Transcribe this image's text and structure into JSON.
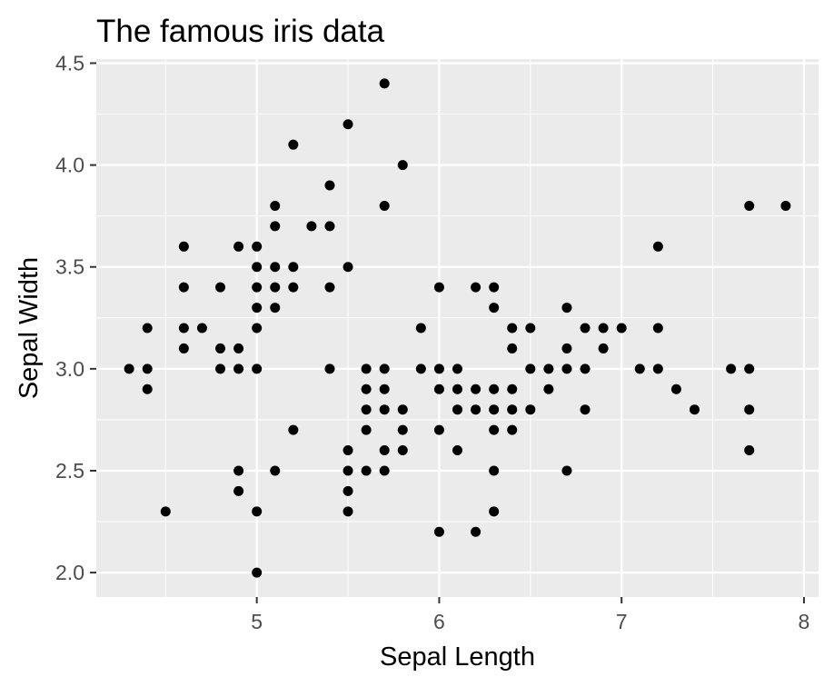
{
  "chart_data": {
    "type": "scatter",
    "title": "The famous iris data",
    "xlabel": "Sepal Length",
    "ylabel": "Sepal Width",
    "xlim": [
      4.12,
      8.08
    ],
    "ylim": [
      1.88,
      4.52
    ],
    "x_ticks": [
      5,
      6,
      7,
      8
    ],
    "x_tick_labels": [
      "5",
      "6",
      "7",
      "8"
    ],
    "y_ticks": [
      2.0,
      2.5,
      3.0,
      3.5,
      4.0,
      4.5
    ],
    "y_tick_labels": [
      "2.0",
      "2.5",
      "3.0",
      "3.5",
      "4.0",
      "4.5"
    ],
    "x_minor_ticks": [
      4.5,
      5.5,
      6.5,
      7.5
    ],
    "y_minor_ticks": [
      2.25,
      2.75,
      3.25,
      3.75,
      4.25
    ],
    "grid": true,
    "legend": "none",
    "colors": {
      "panel": "#ebebeb",
      "grid": "#ffffff",
      "point": "#000000",
      "tick": "#333333"
    },
    "points": [
      [
        4.3,
        3.0
      ],
      [
        4.4,
        3.2
      ],
      [
        4.4,
        3.0
      ],
      [
        4.4,
        2.9
      ],
      [
        4.5,
        2.3
      ],
      [
        4.6,
        3.6
      ],
      [
        4.6,
        3.4
      ],
      [
        4.6,
        3.2
      ],
      [
        4.6,
        3.1
      ],
      [
        4.7,
        3.2
      ],
      [
        4.8,
        3.4
      ],
      [
        4.8,
        3.1
      ],
      [
        4.8,
        3.0
      ],
      [
        4.9,
        3.6
      ],
      [
        4.9,
        3.1
      ],
      [
        4.9,
        3.0
      ],
      [
        4.9,
        2.5
      ],
      [
        4.9,
        2.4
      ],
      [
        5.0,
        3.6
      ],
      [
        5.0,
        3.5
      ],
      [
        5.0,
        3.4
      ],
      [
        5.0,
        3.3
      ],
      [
        5.0,
        3.2
      ],
      [
        5.0,
        3.0
      ],
      [
        5.0,
        2.3
      ],
      [
        5.0,
        2.0
      ],
      [
        5.1,
        3.8
      ],
      [
        5.1,
        3.7
      ],
      [
        5.1,
        3.5
      ],
      [
        5.1,
        3.4
      ],
      [
        5.1,
        3.3
      ],
      [
        5.1,
        2.5
      ],
      [
        5.2,
        4.1
      ],
      [
        5.2,
        3.5
      ],
      [
        5.2,
        3.4
      ],
      [
        5.2,
        2.7
      ],
      [
        5.3,
        3.7
      ],
      [
        5.4,
        3.9
      ],
      [
        5.4,
        3.7
      ],
      [
        5.4,
        3.4
      ],
      [
        5.4,
        3.0
      ],
      [
        5.5,
        4.2
      ],
      [
        5.5,
        3.5
      ],
      [
        5.5,
        2.6
      ],
      [
        5.5,
        2.5
      ],
      [
        5.5,
        2.4
      ],
      [
        5.5,
        2.3
      ],
      [
        5.6,
        3.0
      ],
      [
        5.6,
        2.9
      ],
      [
        5.6,
        2.8
      ],
      [
        5.6,
        2.7
      ],
      [
        5.6,
        2.5
      ],
      [
        5.7,
        4.4
      ],
      [
        5.7,
        3.8
      ],
      [
        5.7,
        3.0
      ],
      [
        5.7,
        2.9
      ],
      [
        5.7,
        2.8
      ],
      [
        5.7,
        2.6
      ],
      [
        5.7,
        2.5
      ],
      [
        5.8,
        4.0
      ],
      [
        5.8,
        2.8
      ],
      [
        5.8,
        2.7
      ],
      [
        5.8,
        2.6
      ],
      [
        5.9,
        3.2
      ],
      [
        5.9,
        3.0
      ],
      [
        6.0,
        3.4
      ],
      [
        6.0,
        3.0
      ],
      [
        6.0,
        2.9
      ],
      [
        6.0,
        2.7
      ],
      [
        6.0,
        2.2
      ],
      [
        6.1,
        3.0
      ],
      [
        6.1,
        2.9
      ],
      [
        6.1,
        2.8
      ],
      [
        6.1,
        2.6
      ],
      [
        6.2,
        3.4
      ],
      [
        6.2,
        2.9
      ],
      [
        6.2,
        2.8
      ],
      [
        6.2,
        2.2
      ],
      [
        6.3,
        3.4
      ],
      [
        6.3,
        3.3
      ],
      [
        6.3,
        2.9
      ],
      [
        6.3,
        2.8
      ],
      [
        6.3,
        2.7
      ],
      [
        6.3,
        2.5
      ],
      [
        6.3,
        2.3
      ],
      [
        6.4,
        3.2
      ],
      [
        6.4,
        3.1
      ],
      [
        6.4,
        2.9
      ],
      [
        6.4,
        2.8
      ],
      [
        6.4,
        2.7
      ],
      [
        6.5,
        3.2
      ],
      [
        6.5,
        3.0
      ],
      [
        6.5,
        2.8
      ],
      [
        6.6,
        3.0
      ],
      [
        6.6,
        2.9
      ],
      [
        6.7,
        3.3
      ],
      [
        6.7,
        3.1
      ],
      [
        6.7,
        3.0
      ],
      [
        6.7,
        2.5
      ],
      [
        6.8,
        3.2
      ],
      [
        6.8,
        3.0
      ],
      [
        6.8,
        2.8
      ],
      [
        6.9,
        3.2
      ],
      [
        6.9,
        3.1
      ],
      [
        7.0,
        3.2
      ],
      [
        7.1,
        3.0
      ],
      [
        7.2,
        3.6
      ],
      [
        7.2,
        3.2
      ],
      [
        7.2,
        3.0
      ],
      [
        7.3,
        2.9
      ],
      [
        7.4,
        2.8
      ],
      [
        7.6,
        3.0
      ],
      [
        7.7,
        3.8
      ],
      [
        7.7,
        3.0
      ],
      [
        7.7,
        2.8
      ],
      [
        7.7,
        2.6
      ],
      [
        7.9,
        3.8
      ]
    ]
  }
}
